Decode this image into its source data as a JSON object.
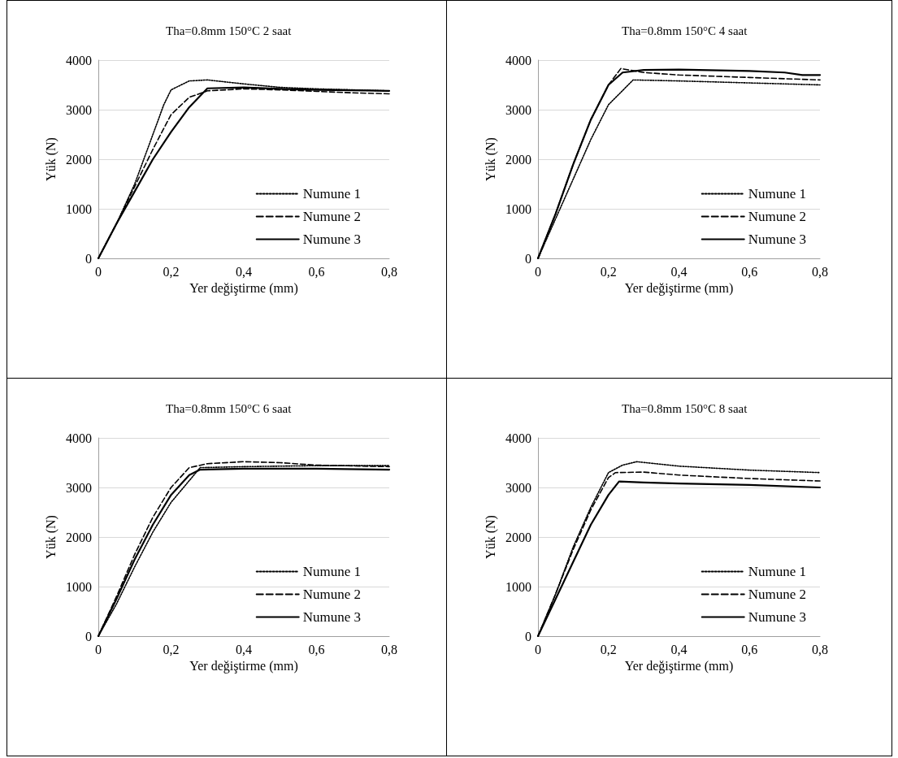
{
  "chart_data": [
    {
      "type": "line",
      "title": "Tha=0.8mm 150°C 2 saat",
      "xlabel": "Yer değiştirme (mm)",
      "ylabel": "Yük (N)",
      "xlim": [
        0,
        0.8
      ],
      "ylim": [
        0,
        4000
      ],
      "xticks": [
        {
          "value": 0,
          "label": "0"
        },
        {
          "value": 0.2,
          "label": "0,2"
        },
        {
          "value": 0.4,
          "label": "0,4"
        },
        {
          "value": 0.6,
          "label": "0,6"
        },
        {
          "value": 0.8,
          "label": "0,8"
        }
      ],
      "yticks": [
        0,
        1000,
        2000,
        3000,
        4000
      ],
      "grid": "y",
      "legend": "bottom right",
      "marker": "none",
      "series": [
        {
          "name": "Numune 1",
          "color": "#000000",
          "line_style": "dotted",
          "x": [
            0,
            0.05,
            0.1,
            0.15,
            0.18,
            0.2,
            0.25,
            0.3,
            0.4,
            0.5,
            0.6,
            0.7,
            0.8
          ],
          "values": [
            0,
            700,
            1500,
            2500,
            3100,
            3400,
            3580,
            3600,
            3520,
            3450,
            3420,
            3400,
            3380
          ]
        },
        {
          "name": "Numune 2",
          "color": "#000000",
          "line_style": "dashed",
          "x": [
            0,
            0.05,
            0.1,
            0.15,
            0.2,
            0.25,
            0.3,
            0.4,
            0.5,
            0.6,
            0.7,
            0.8
          ],
          "values": [
            0,
            700,
            1450,
            2200,
            2900,
            3250,
            3380,
            3420,
            3400,
            3370,
            3340,
            3320
          ]
        },
        {
          "name": "Numune 3",
          "color": "#000000",
          "line_style": "solid",
          "x": [
            0,
            0.05,
            0.1,
            0.15,
            0.2,
            0.25,
            0.3,
            0.4,
            0.5,
            0.6,
            0.7,
            0.8
          ],
          "values": [
            0,
            700,
            1350,
            2000,
            2550,
            3050,
            3430,
            3450,
            3420,
            3400,
            3390,
            3380
          ]
        }
      ]
    },
    {
      "type": "line",
      "title": "Tha=0.8mm 150°C 4 saat",
      "xlabel": "Yer değiştirme (mm)",
      "ylabel": "Yük (N)",
      "xlim": [
        0,
        0.8
      ],
      "ylim": [
        0,
        4000
      ],
      "xticks": [
        {
          "value": 0,
          "label": "0"
        },
        {
          "value": 0.2,
          "label": "0,2"
        },
        {
          "value": 0.4,
          "label": "0,4"
        },
        {
          "value": 0.6,
          "label": "0,6"
        },
        {
          "value": 0.8,
          "label": "0,8"
        }
      ],
      "yticks": [
        0,
        1000,
        2000,
        3000,
        4000
      ],
      "grid": "y",
      "legend": "bottom right",
      "marker": "none",
      "series": [
        {
          "name": "Numune 1",
          "color": "#000000",
          "line_style": "dotted",
          "x": [
            0,
            0.05,
            0.1,
            0.15,
            0.2,
            0.27,
            0.4,
            0.6,
            0.8
          ],
          "values": [
            0,
            800,
            1600,
            2400,
            3100,
            3600,
            3580,
            3540,
            3500
          ]
        },
        {
          "name": "Numune 2",
          "color": "#000000",
          "line_style": "dashed",
          "x": [
            0,
            0.05,
            0.1,
            0.15,
            0.2,
            0.235,
            0.3,
            0.4,
            0.6,
            0.8
          ],
          "values": [
            0,
            900,
            1900,
            2800,
            3500,
            3830,
            3750,
            3700,
            3650,
            3600
          ]
        },
        {
          "name": "Numune 3",
          "color": "#000000",
          "line_style": "solid",
          "x": [
            0,
            0.05,
            0.1,
            0.15,
            0.2,
            0.24,
            0.3,
            0.4,
            0.6,
            0.7,
            0.75,
            0.8
          ],
          "values": [
            0,
            900,
            1900,
            2800,
            3500,
            3750,
            3800,
            3810,
            3780,
            3750,
            3700,
            3700
          ]
        }
      ]
    },
    {
      "type": "line",
      "title": "Tha=0.8mm 150°C 6 saat",
      "xlabel": "Yer değiştirme (mm)",
      "ylabel": "Yük (N)",
      "xlim": [
        0,
        0.8
      ],
      "ylim": [
        0,
        4000
      ],
      "xticks": [
        {
          "value": 0,
          "label": "0"
        },
        {
          "value": 0.2,
          "label": "0,2"
        },
        {
          "value": 0.4,
          "label": "0,4"
        },
        {
          "value": 0.6,
          "label": "0,6"
        },
        {
          "value": 0.8,
          "label": "0,8"
        }
      ],
      "yticks": [
        0,
        1000,
        2000,
        3000,
        4000
      ],
      "grid": "y",
      "legend": "bottom right",
      "marker": "none",
      "series": [
        {
          "name": "Numune 1",
          "color": "#000000",
          "line_style": "dotted",
          "x": [
            0,
            0.05,
            0.1,
            0.15,
            0.2,
            0.28,
            0.4,
            0.6,
            0.8
          ],
          "values": [
            0,
            650,
            1400,
            2100,
            2700,
            3400,
            3420,
            3440,
            3440
          ]
        },
        {
          "name": "Numune 2",
          "color": "#000000",
          "line_style": "dashed",
          "x": [
            0,
            0.05,
            0.1,
            0.15,
            0.2,
            0.25,
            0.3,
            0.4,
            0.5,
            0.6,
            0.8
          ],
          "values": [
            0,
            800,
            1650,
            2400,
            3000,
            3400,
            3480,
            3520,
            3500,
            3450,
            3420
          ]
        },
        {
          "name": "Numune 3",
          "color": "#000000",
          "line_style": "solid",
          "x": [
            0,
            0.05,
            0.1,
            0.15,
            0.2,
            0.25,
            0.28,
            0.4,
            0.6,
            0.8
          ],
          "values": [
            0,
            750,
            1550,
            2250,
            2850,
            3250,
            3360,
            3380,
            3380,
            3360
          ]
        }
      ]
    },
    {
      "type": "line",
      "title": "Tha=0.8mm 150°C 8 saat",
      "xlabel": "Yer değiştirme (mm)",
      "ylabel": "Yük (N)",
      "xlim": [
        0,
        0.8
      ],
      "ylim": [
        0,
        4000
      ],
      "xticks": [
        {
          "value": 0,
          "label": "0"
        },
        {
          "value": 0.2,
          "label": "0,2"
        },
        {
          "value": 0.4,
          "label": "0,4"
        },
        {
          "value": 0.6,
          "label": "0,6"
        },
        {
          "value": 0.8,
          "label": "0,8"
        }
      ],
      "yticks": [
        0,
        1000,
        2000,
        3000,
        4000
      ],
      "grid": "y",
      "legend": "bottom right",
      "marker": "none",
      "series": [
        {
          "name": "Numune 1",
          "color": "#000000",
          "line_style": "dotted",
          "x": [
            0,
            0.05,
            0.1,
            0.15,
            0.2,
            0.24,
            0.28,
            0.4,
            0.6,
            0.8
          ],
          "values": [
            0,
            850,
            1800,
            2600,
            3300,
            3450,
            3520,
            3430,
            3350,
            3300
          ]
        },
        {
          "name": "Numune 2",
          "color": "#000000",
          "line_style": "dashed",
          "x": [
            0,
            0.05,
            0.1,
            0.15,
            0.2,
            0.22,
            0.3,
            0.4,
            0.6,
            0.8
          ],
          "values": [
            0,
            850,
            1750,
            2550,
            3200,
            3300,
            3310,
            3250,
            3180,
            3130
          ]
        },
        {
          "name": "Numune 3",
          "color": "#000000",
          "line_style": "solid",
          "x": [
            0,
            0.05,
            0.1,
            0.15,
            0.2,
            0.23,
            0.3,
            0.4,
            0.6,
            0.8
          ],
          "values": [
            0,
            750,
            1500,
            2250,
            2850,
            3120,
            3100,
            3080,
            3050,
            3000
          ]
        }
      ]
    }
  ]
}
